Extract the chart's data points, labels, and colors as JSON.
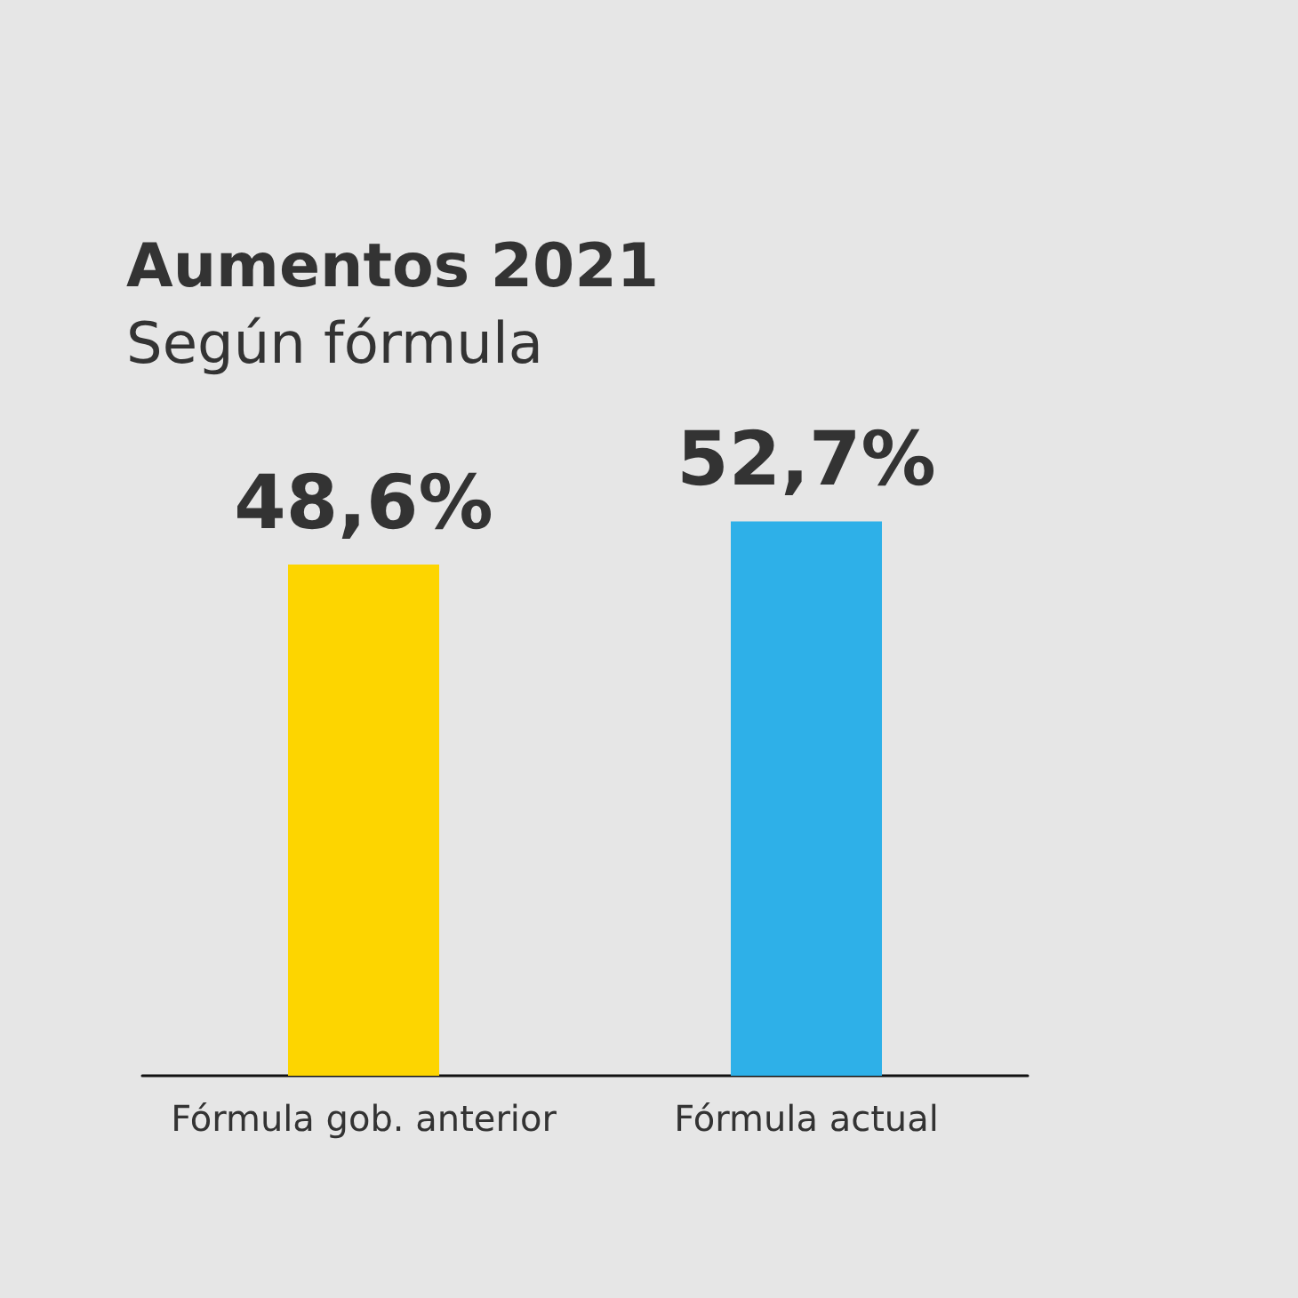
{
  "chart_data": {
    "type": "bar",
    "title": "Aumentos 2021",
    "subtitle": "Según fórmula",
    "categories": [
      "Fórmula gob. anterior",
      "Fórmula actual"
    ],
    "values": [
      48.6,
      52.7
    ],
    "colors": [
      "#fdd500",
      "#2eb0e8"
    ],
    "value_labels": [
      "48,6%",
      "52,7%"
    ]
  }
}
